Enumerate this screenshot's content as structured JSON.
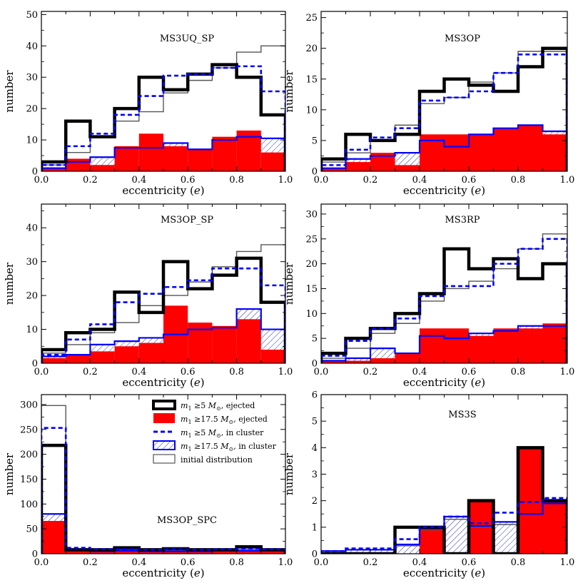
{
  "chart_data": [
    {
      "type": "histogram",
      "title": "MS3UQ_SP",
      "xlabel": "eccentricity (e)",
      "ylabel": "number",
      "xlim": [
        0,
        1
      ],
      "ylim": [
        0,
        51
      ],
      "yticks": [
        0,
        10,
        20,
        30,
        40,
        50
      ],
      "bins": [
        0.0,
        0.1,
        0.2,
        0.3,
        0.4,
        0.5,
        0.6,
        0.7,
        0.8,
        0.9,
        1.0
      ],
      "series": [
        {
          "name": "m1 ≥ 5 M☉, ejected",
          "values": [
            3,
            16,
            11,
            20,
            30,
            26,
            31,
            34,
            30,
            18
          ]
        },
        {
          "name": "m1 ≥ 17.5 M☉, ejected",
          "values": [
            1,
            4,
            2,
            8,
            12,
            8,
            7,
            11,
            13,
            6
          ]
        },
        {
          "name": "m1 ≥ 5 M☉, in cluster",
          "values": [
            2,
            8,
            12,
            18,
            24,
            30.5,
            31,
            33,
            33.5,
            25.5
          ]
        },
        {
          "name": "m1 ≥ 17.5 M☉, in cluster",
          "values": [
            1,
            3,
            4.5,
            7.5,
            7.5,
            9,
            7,
            10,
            11,
            10.5
          ]
        },
        {
          "name": "initial distribution",
          "values": [
            2,
            6,
            11,
            16,
            19,
            25,
            29,
            33,
            38,
            40
          ]
        }
      ]
    },
    {
      "type": "histogram",
      "title": "MS3OP",
      "xlabel": "eccentricity (e)",
      "ylabel": "number",
      "xlim": [
        0,
        1
      ],
      "ylim": [
        0,
        26
      ],
      "yticks": [
        0,
        5,
        10,
        15,
        20,
        25
      ],
      "bins": [
        0.0,
        0.1,
        0.2,
        0.3,
        0.4,
        0.5,
        0.6,
        0.7,
        0.8,
        0.9,
        1.0
      ],
      "series": [
        {
          "name": "m1 ≥ 5 M☉, ejected",
          "values": [
            2,
            6,
            5,
            6,
            13,
            15,
            14,
            13,
            17,
            20
          ]
        },
        {
          "name": "m1 ≥ 17.5 M☉, ejected",
          "values": [
            0.5,
            1.5,
            3,
            1,
            6,
            6,
            6,
            7,
            7.5,
            6
          ]
        },
        {
          "name": "m1 ≥ 5 M☉, in cluster",
          "values": [
            1,
            3.5,
            5.5,
            7,
            11.5,
            12,
            13,
            16,
            19,
            19
          ]
        },
        {
          "name": "m1 ≥ 17.5 M☉, in cluster",
          "values": [
            0.5,
            2,
            2.5,
            3,
            5,
            4,
            6,
            7,
            7.5,
            6.5
          ]
        },
        {
          "name": "initial distribution",
          "values": [
            1.5,
            3,
            5,
            7.5,
            11,
            12,
            14.5,
            16,
            19.5,
            19.5
          ]
        }
      ]
    },
    {
      "type": "histogram",
      "title": "MS3OP_SP",
      "xlabel": "eccentricity (e)",
      "ylabel": "number",
      "xlim": [
        0,
        1
      ],
      "ylim": [
        0,
        47
      ],
      "yticks": [
        0,
        10,
        20,
        30,
        40
      ],
      "bins": [
        0.0,
        0.1,
        0.2,
        0.3,
        0.4,
        0.5,
        0.6,
        0.7,
        0.8,
        0.9,
        1.0
      ],
      "series": [
        {
          "name": "m1 ≥ 5 M☉, ejected",
          "values": [
            4,
            9,
            10,
            21,
            15,
            30,
            22,
            26,
            31,
            18
          ]
        },
        {
          "name": "m1 ≥ 17.5 M☉, ejected",
          "values": [
            1.5,
            2.5,
            3.5,
            5,
            6,
            17,
            12,
            11,
            13,
            4
          ]
        },
        {
          "name": "m1 ≥ 5 M☉, in cluster",
          "values": [
            2.5,
            7,
            11.5,
            18,
            20.5,
            22.5,
            24.5,
            28,
            28,
            23
          ]
        },
        {
          "name": "m1 ≥ 17.5 M☉, in cluster",
          "values": [
            2,
            2.5,
            5.5,
            6.5,
            7.5,
            8.5,
            10,
            10.5,
            16,
            10
          ]
        },
        {
          "name": "initial distribution",
          "values": [
            3,
            5.5,
            9,
            12,
            17,
            20,
            24,
            28.5,
            33,
            35
          ]
        }
      ]
    },
    {
      "type": "histogram",
      "title": "MS3RP",
      "xlabel": "eccentricity (e)",
      "ylabel": "number",
      "xlim": [
        0,
        1
      ],
      "ylim": [
        0,
        32
      ],
      "yticks": [
        0,
        5,
        10,
        15,
        20,
        25,
        30
      ],
      "bins": [
        0.0,
        0.1,
        0.2,
        0.3,
        0.4,
        0.5,
        0.6,
        0.7,
        0.8,
        0.9,
        1.0
      ],
      "series": [
        {
          "name": "m1 ≥ 5 M☉, ejected",
          "values": [
            2,
            5,
            7,
            10,
            14,
            23,
            19,
            21,
            17,
            20
          ]
        },
        {
          "name": "m1 ≥ 17.5 M☉, ejected",
          "values": [
            0.5,
            0.5,
            1,
            2,
            7,
            7,
            5.5,
            7,
            7,
            8
          ]
        },
        {
          "name": "m1 ≥ 5 M☉, in cluster",
          "values": [
            1.5,
            4.5,
            7,
            9,
            13.5,
            15.5,
            15.5,
            20,
            23,
            25
          ]
        },
        {
          "name": "m1 ≥ 17.5 M☉, in cluster",
          "values": [
            0.5,
            1,
            3,
            2,
            5.5,
            5,
            6,
            6.5,
            7.5,
            7.5
          ]
        },
        {
          "name": "initial distribution",
          "values": [
            1,
            3,
            6,
            8,
            12.5,
            15,
            16.5,
            19,
            23,
            26
          ]
        }
      ]
    },
    {
      "type": "histogram",
      "title": "MS3OP_SPC",
      "xlabel": "eccentricity (e)",
      "ylabel": "number",
      "xlim": [
        0,
        1
      ],
      "ylim": [
        0,
        320
      ],
      "yticks": [
        0,
        50,
        100,
        150,
        200,
        250,
        300
      ],
      "bins": [
        0.0,
        0.1,
        0.2,
        0.3,
        0.4,
        0.5,
        0.6,
        0.7,
        0.8,
        0.9,
        1.0
      ],
      "series": [
        {
          "name": "m1 ≥ 5 M☉, ejected",
          "values": [
            218,
            8,
            8,
            12,
            8,
            10,
            8,
            8,
            14,
            8
          ]
        },
        {
          "name": "m1 ≥ 17.5 M☉, ejected",
          "values": [
            66,
            5,
            4,
            6,
            4,
            4,
            4,
            5,
            5,
            5
          ]
        },
        {
          "name": "m1 ≥ 5 M☉, in cluster",
          "values": [
            253,
            12,
            9,
            9,
            8,
            9,
            8,
            9,
            10,
            9
          ]
        },
        {
          "name": "m1 ≥ 17.5 M☉, in cluster",
          "values": [
            80,
            6,
            5,
            6,
            5,
            5,
            5,
            6,
            6,
            6
          ]
        },
        {
          "name": "initial distribution",
          "values": [
            298,
            10,
            8,
            8,
            8,
            8,
            8,
            8,
            9,
            8
          ]
        }
      ]
    },
    {
      "type": "histogram",
      "title": "MS3S",
      "xlabel": "eccentricity (e)",
      "ylabel": "number",
      "xlim": [
        0,
        1
      ],
      "ylim": [
        0,
        6
      ],
      "yticks": [
        0,
        1,
        2,
        3,
        4,
        5,
        6
      ],
      "bins": [
        0.0,
        0.1,
        0.2,
        0.3,
        0.4,
        0.5,
        0.6,
        0.7,
        0.8,
        0.9,
        1.0
      ],
      "series": [
        {
          "name": "m1 ≥ 5 M☉, ejected",
          "values": [
            0,
            0,
            0,
            1,
            1,
            0,
            2,
            0,
            4,
            2
          ]
        },
        {
          "name": "m1 ≥ 17.5 M☉, ejected",
          "values": [
            0,
            0,
            0,
            0,
            0.95,
            0,
            2,
            0,
            4,
            2
          ]
        },
        {
          "name": "m1 ≥ 5 M☉, in cluster",
          "values": [
            0.1,
            0.2,
            0.2,
            0.55,
            1.0,
            1.4,
            1.15,
            1.55,
            1.95,
            2.1
          ]
        },
        {
          "name": "m1 ≥ 17.5 M☉, in cluster",
          "values": [
            0.1,
            0.15,
            0.15,
            0.35,
            0.95,
            1.4,
            1.05,
            1.2,
            1.5,
            1.9
          ]
        },
        {
          "name": "initial distribution",
          "values": [
            0.1,
            0.15,
            0.15,
            0.3,
            0.9,
            1.3,
            1.0,
            1.1,
            1.5,
            1.9
          ]
        }
      ]
    }
  ],
  "legend": {
    "entries": [
      {
        "key": "m1_5_ejected",
        "math": "m",
        "sub": "1",
        "rest": " ≥5 ",
        "unit": "M",
        "unit_sub": "⊙",
        "suffix": ", ejected"
      },
      {
        "key": "m1_17_ejected",
        "math": "m",
        "sub": "1",
        "rest": " ≥17.5 ",
        "unit": "M",
        "unit_sub": "⊙",
        "suffix": ", ejected"
      },
      {
        "key": "m1_5_cluster",
        "math": "m",
        "sub": "1",
        "rest": " ≥5 ",
        "unit": "M",
        "unit_sub": "⊙",
        "suffix": ", in cluster"
      },
      {
        "key": "m1_17_cluster",
        "math": "m",
        "sub": "1",
        "rest": " ≥17.5 ",
        "unit": "M",
        "unit_sub": "⊙",
        "suffix": ", in cluster"
      },
      {
        "key": "initial",
        "text": "initial distribution"
      }
    ]
  },
  "colors": {
    "ejected_all": "#000000",
    "ejected_massive": "#ff0000",
    "cluster_all": "#0000ff",
    "cluster_massive": "#0000ff",
    "initial": "#555555"
  }
}
